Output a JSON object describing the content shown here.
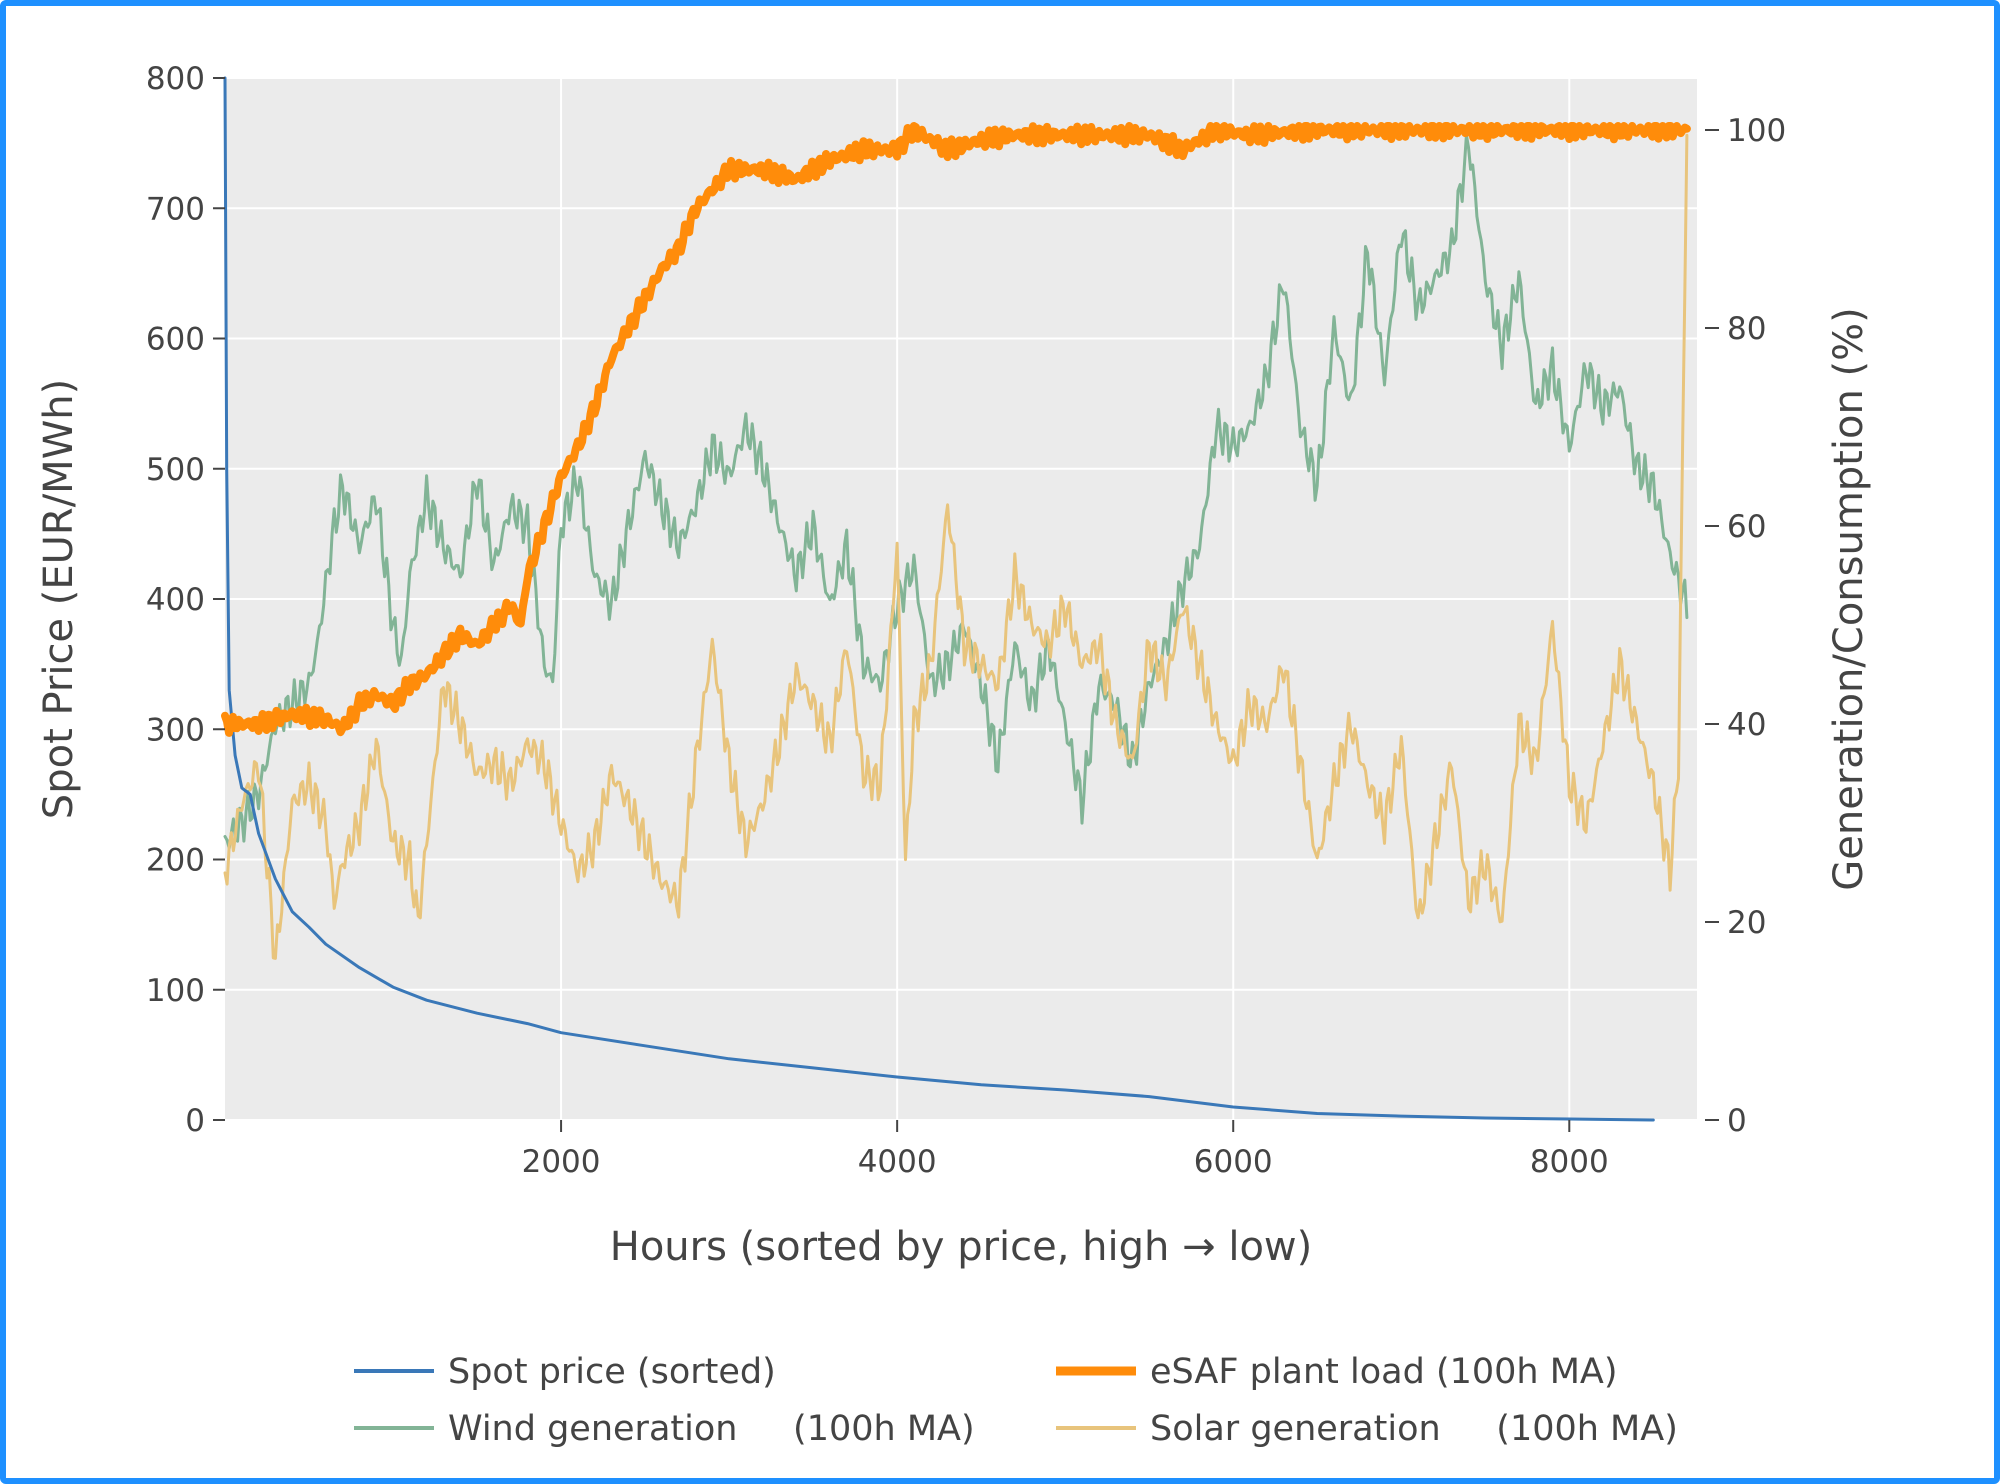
{
  "chart_data": {
    "type": "line",
    "xlabel": "Hours (sorted by price, high → low)",
    "ylabel": "Spot Price (EUR/MWh)",
    "y2label": "Generation/Consumption (%)",
    "xlim": [
      0,
      8760
    ],
    "ylim": [
      0,
      800
    ],
    "y2lim": [
      0,
      105
    ],
    "xticks": [
      2000,
      4000,
      6000,
      8000
    ],
    "yticks": [
      0,
      100,
      200,
      300,
      400,
      500,
      600,
      700,
      800
    ],
    "y2ticks": [
      0,
      20,
      40,
      60,
      80,
      100
    ],
    "grid": true,
    "legend_position": "bottom",
    "series": [
      {
        "name": "Spot price (sorted)",
        "axis": "y",
        "color": "#3a78b8",
        "points": [
          [
            0,
            800
          ],
          [
            10,
            500
          ],
          [
            25,
            330
          ],
          [
            60,
            280
          ],
          [
            100,
            255
          ],
          [
            150,
            250
          ],
          [
            200,
            220
          ],
          [
            300,
            185
          ],
          [
            400,
            160
          ],
          [
            500,
            148
          ],
          [
            600,
            135
          ],
          [
            800,
            117
          ],
          [
            1000,
            102
          ],
          [
            1200,
            92
          ],
          [
            1500,
            82
          ],
          [
            1800,
            74
          ],
          [
            2000,
            67
          ],
          [
            2500,
            57
          ],
          [
            3000,
            47
          ],
          [
            3500,
            40
          ],
          [
            4000,
            33
          ],
          [
            4500,
            27
          ],
          [
            5000,
            23
          ],
          [
            5500,
            18
          ],
          [
            6000,
            10
          ],
          [
            6500,
            5
          ],
          [
            7000,
            3
          ],
          [
            7500,
            1.5
          ],
          [
            8000,
            0.8
          ],
          [
            8500,
            0
          ]
        ]
      },
      {
        "name": "eSAF plant load (100h MA)",
        "axis": "y2",
        "color": "#ff8c0a",
        "points": [
          [
            0,
            40
          ],
          [
            200,
            40
          ],
          [
            400,
            41
          ],
          [
            600,
            40.5
          ],
          [
            700,
            39.5
          ],
          [
            800,
            42
          ],
          [
            900,
            43
          ],
          [
            1000,
            42
          ],
          [
            1100,
            44
          ],
          [
            1200,
            45
          ],
          [
            1300,
            47
          ],
          [
            1400,
            49
          ],
          [
            1500,
            48
          ],
          [
            1600,
            50
          ],
          [
            1700,
            52
          ],
          [
            1760,
            50
          ],
          [
            1800,
            55
          ],
          [
            1900,
            60
          ],
          [
            2000,
            65
          ],
          [
            2100,
            68
          ],
          [
            2200,
            72
          ],
          [
            2300,
            77
          ],
          [
            2400,
            80
          ],
          [
            2500,
            83
          ],
          [
            2600,
            86
          ],
          [
            2700,
            88
          ],
          [
            2800,
            92
          ],
          [
            2900,
            94
          ],
          [
            3000,
            96
          ],
          [
            3200,
            96
          ],
          [
            3400,
            95
          ],
          [
            3600,
            97
          ],
          [
            3800,
            98
          ],
          [
            4000,
            98
          ],
          [
            4100,
            100
          ],
          [
            4300,
            98
          ],
          [
            4500,
            99
          ],
          [
            4700,
            99.5
          ],
          [
            5000,
            99.5
          ],
          [
            5500,
            99.5
          ],
          [
            5700,
            98
          ],
          [
            5900,
            100
          ],
          [
            6100,
            99.5
          ],
          [
            6500,
            100
          ],
          [
            7000,
            100
          ],
          [
            7500,
            100
          ],
          [
            8000,
            100
          ],
          [
            8700,
            100
          ]
        ]
      },
      {
        "name": "Wind generation     (100h MA)",
        "axis": "y2",
        "color": "#82b496",
        "points": [
          [
            0,
            28
          ],
          [
            100,
            30
          ],
          [
            200,
            33
          ],
          [
            300,
            40
          ],
          [
            400,
            42
          ],
          [
            500,
            44
          ],
          [
            550,
            48
          ],
          [
            600,
            54
          ],
          [
            650,
            60
          ],
          [
            700,
            64
          ],
          [
            800,
            58
          ],
          [
            900,
            63
          ],
          [
            1000,
            50
          ],
          [
            1050,
            46
          ],
          [
            1100,
            55
          ],
          [
            1200,
            63
          ],
          [
            1300,
            58
          ],
          [
            1400,
            55
          ],
          [
            1500,
            65
          ],
          [
            1600,
            56
          ],
          [
            1700,
            62
          ],
          [
            1800,
            60
          ],
          [
            1900,
            46
          ],
          [
            1950,
            44
          ],
          [
            2000,
            60
          ],
          [
            2100,
            65
          ],
          [
            2200,
            55
          ],
          [
            2300,
            52
          ],
          [
            2400,
            60
          ],
          [
            2500,
            67
          ],
          [
            2600,
            62
          ],
          [
            2700,
            58
          ],
          [
            2800,
            62
          ],
          [
            2900,
            68
          ],
          [
            3000,
            65
          ],
          [
            3100,
            70
          ],
          [
            3200,
            66
          ],
          [
            3300,
            60
          ],
          [
            3400,
            55
          ],
          [
            3500,
            60
          ],
          [
            3600,
            52
          ],
          [
            3700,
            58
          ],
          [
            3800,
            46
          ],
          [
            3900,
            44
          ],
          [
            4000,
            52
          ],
          [
            4100,
            56
          ],
          [
            4200,
            44
          ],
          [
            4300,
            46
          ],
          [
            4400,
            50
          ],
          [
            4500,
            44
          ],
          [
            4600,
            36
          ],
          [
            4700,
            48
          ],
          [
            4800,
            42
          ],
          [
            4900,
            48
          ],
          [
            5000,
            40
          ],
          [
            5100,
            32
          ],
          [
            5200,
            44
          ],
          [
            5300,
            42
          ],
          [
            5400,
            36
          ],
          [
            5500,
            44
          ],
          [
            5600,
            48
          ],
          [
            5700,
            54
          ],
          [
            5800,
            58
          ],
          [
            5900,
            70
          ],
          [
            6000,
            68
          ],
          [
            6100,
            70
          ],
          [
            6200,
            75
          ],
          [
            6300,
            85
          ],
          [
            6400,
            70
          ],
          [
            6500,
            64
          ],
          [
            6600,
            80
          ],
          [
            6700,
            72
          ],
          [
            6800,
            88
          ],
          [
            6900,
            75
          ],
          [
            7000,
            90
          ],
          [
            7100,
            82
          ],
          [
            7200,
            85
          ],
          [
            7300,
            88
          ],
          [
            7400,
            99
          ],
          [
            7500,
            85
          ],
          [
            7600,
            78
          ],
          [
            7700,
            85
          ],
          [
            7800,
            72
          ],
          [
            7900,
            76
          ],
          [
            8000,
            68
          ],
          [
            8100,
            76
          ],
          [
            8200,
            72
          ],
          [
            8300,
            74
          ],
          [
            8400,
            66
          ],
          [
            8500,
            64
          ],
          [
            8600,
            57
          ],
          [
            8700,
            52
          ]
        ]
      },
      {
        "name": "Solar generation     (100h MA)",
        "axis": "y2",
        "color": "#e8c47c",
        "points": [
          [
            0,
            25
          ],
          [
            100,
            32
          ],
          [
            200,
            36
          ],
          [
            300,
            16
          ],
          [
            400,
            32
          ],
          [
            500,
            34
          ],
          [
            600,
            30
          ],
          [
            650,
            22
          ],
          [
            700,
            26
          ],
          [
            800,
            30
          ],
          [
            900,
            38
          ],
          [
            1000,
            28
          ],
          [
            1100,
            26
          ],
          [
            1150,
            20
          ],
          [
            1200,
            28
          ],
          [
            1300,
            44
          ],
          [
            1400,
            40
          ],
          [
            1500,
            35
          ],
          [
            1600,
            36
          ],
          [
            1700,
            34
          ],
          [
            1800,
            38
          ],
          [
            1900,
            36
          ],
          [
            2000,
            30
          ],
          [
            2100,
            25
          ],
          [
            2200,
            28
          ],
          [
            2300,
            35
          ],
          [
            2400,
            32
          ],
          [
            2500,
            28
          ],
          [
            2600,
            24
          ],
          [
            2700,
            22
          ],
          [
            2800,
            36
          ],
          [
            2900,
            48
          ],
          [
            3000,
            36
          ],
          [
            3100,
            28
          ],
          [
            3200,
            32
          ],
          [
            3300,
            38
          ],
          [
            3400,
            45
          ],
          [
            3500,
            42
          ],
          [
            3600,
            38
          ],
          [
            3700,
            48
          ],
          [
            3800,
            35
          ],
          [
            3900,
            34
          ],
          [
            4000,
            58
          ],
          [
            4050,
            26
          ],
          [
            4100,
            40
          ],
          [
            4200,
            46
          ],
          [
            4300,
            62
          ],
          [
            4400,
            48
          ],
          [
            4500,
            46
          ],
          [
            4600,
            44
          ],
          [
            4700,
            55
          ],
          [
            4800,
            50
          ],
          [
            4900,
            48
          ],
          [
            5000,
            52
          ],
          [
            5100,
            46
          ],
          [
            5200,
            48
          ],
          [
            5300,
            40
          ],
          [
            5400,
            36
          ],
          [
            5500,
            48
          ],
          [
            5600,
            44
          ],
          [
            5700,
            52
          ],
          [
            5800,
            46
          ],
          [
            5900,
            40
          ],
          [
            6000,
            36
          ],
          [
            6100,
            42
          ],
          [
            6200,
            40
          ],
          [
            6300,
            46
          ],
          [
            6400,
            36
          ],
          [
            6500,
            26
          ],
          [
            6600,
            34
          ],
          [
            6700,
            40
          ],
          [
            6800,
            34
          ],
          [
            6900,
            30
          ],
          [
            7000,
            38
          ],
          [
            7100,
            20
          ],
          [
            7200,
            28
          ],
          [
            7300,
            36
          ],
          [
            7400,
            22
          ],
          [
            7500,
            26
          ],
          [
            7600,
            20
          ],
          [
            7700,
            40
          ],
          [
            7800,
            36
          ],
          [
            7900,
            50
          ],
          [
            8000,
            34
          ],
          [
            8100,
            30
          ],
          [
            8200,
            38
          ],
          [
            8300,
            46
          ],
          [
            8400,
            40
          ],
          [
            8500,
            34
          ],
          [
            8600,
            25
          ],
          [
            8650,
            36
          ],
          [
            8700,
            100
          ]
        ]
      }
    ]
  }
}
